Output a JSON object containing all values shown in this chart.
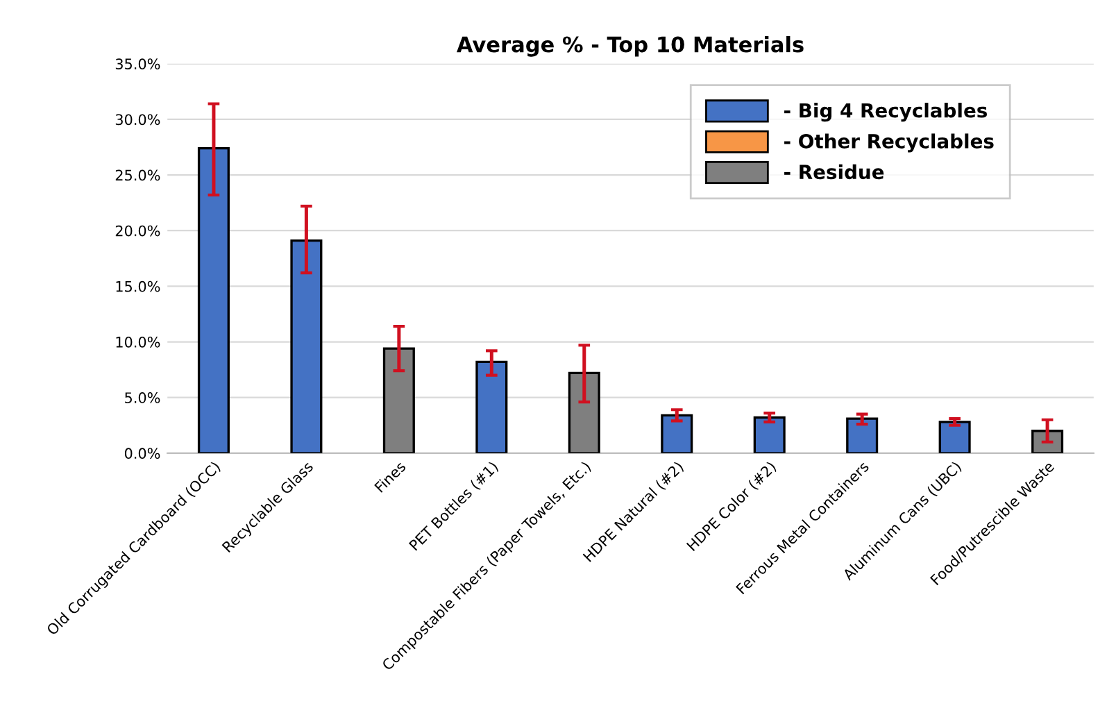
{
  "chart_data": {
    "type": "bar",
    "title": "Average % - Top 10 Materials",
    "categories": [
      "Old Corrugated Cardboard (OCC)",
      "Recyclable Glass",
      "Fines",
      "PET Bottles (#1)",
      "Compostable Fibers (Paper Towels, Etc.)",
      "HDPE Natural (#2)",
      "HDPE Color (#2)",
      "Ferrous Metal Containers",
      "Aluminum Cans (UBC)",
      "Food/Putrescible Waste"
    ],
    "series": [
      {
        "name": "- Big 4 Recyclables",
        "color": "#4472c4",
        "values": [
          27.4,
          19.1,
          null,
          8.2,
          null,
          3.4,
          3.2,
          3.1,
          2.8,
          null
        ],
        "errors": [
          [
            23.2,
            31.4
          ],
          [
            16.2,
            22.2
          ],
          null,
          [
            7.0,
            9.2
          ],
          null,
          [
            2.9,
            3.9
          ],
          [
            2.8,
            3.6
          ],
          [
            2.6,
            3.5
          ],
          [
            2.5,
            3.1
          ],
          null
        ]
      },
      {
        "name": "- Other Recyclables",
        "color": "#f79646",
        "values": [
          null,
          null,
          null,
          null,
          null,
          null,
          null,
          null,
          null,
          null
        ]
      },
      {
        "name": "- Residue",
        "color": "#7f7f7f",
        "values": [
          null,
          null,
          9.4,
          null,
          7.2,
          null,
          null,
          null,
          null,
          2.0
        ],
        "errors": [
          null,
          null,
          [
            7.4,
            11.4
          ],
          null,
          [
            4.6,
            9.7
          ],
          null,
          null,
          null,
          null,
          [
            1.0,
            3.0
          ]
        ]
      }
    ],
    "ylim": [
      0,
      35
    ],
    "yticks": [
      {
        "value": 0,
        "label": "0.0%"
      },
      {
        "value": 5,
        "label": "5.0%"
      },
      {
        "value": 10,
        "label": "10.0%"
      },
      {
        "value": 15,
        "label": "15.0%"
      },
      {
        "value": 20,
        "label": "20.0%"
      },
      {
        "value": 25,
        "label": "25.0%"
      },
      {
        "value": 30,
        "label": "30.0%"
      },
      {
        "value": 35,
        "label": "35.0%"
      }
    ],
    "grid": "y",
    "legend": "top right"
  }
}
